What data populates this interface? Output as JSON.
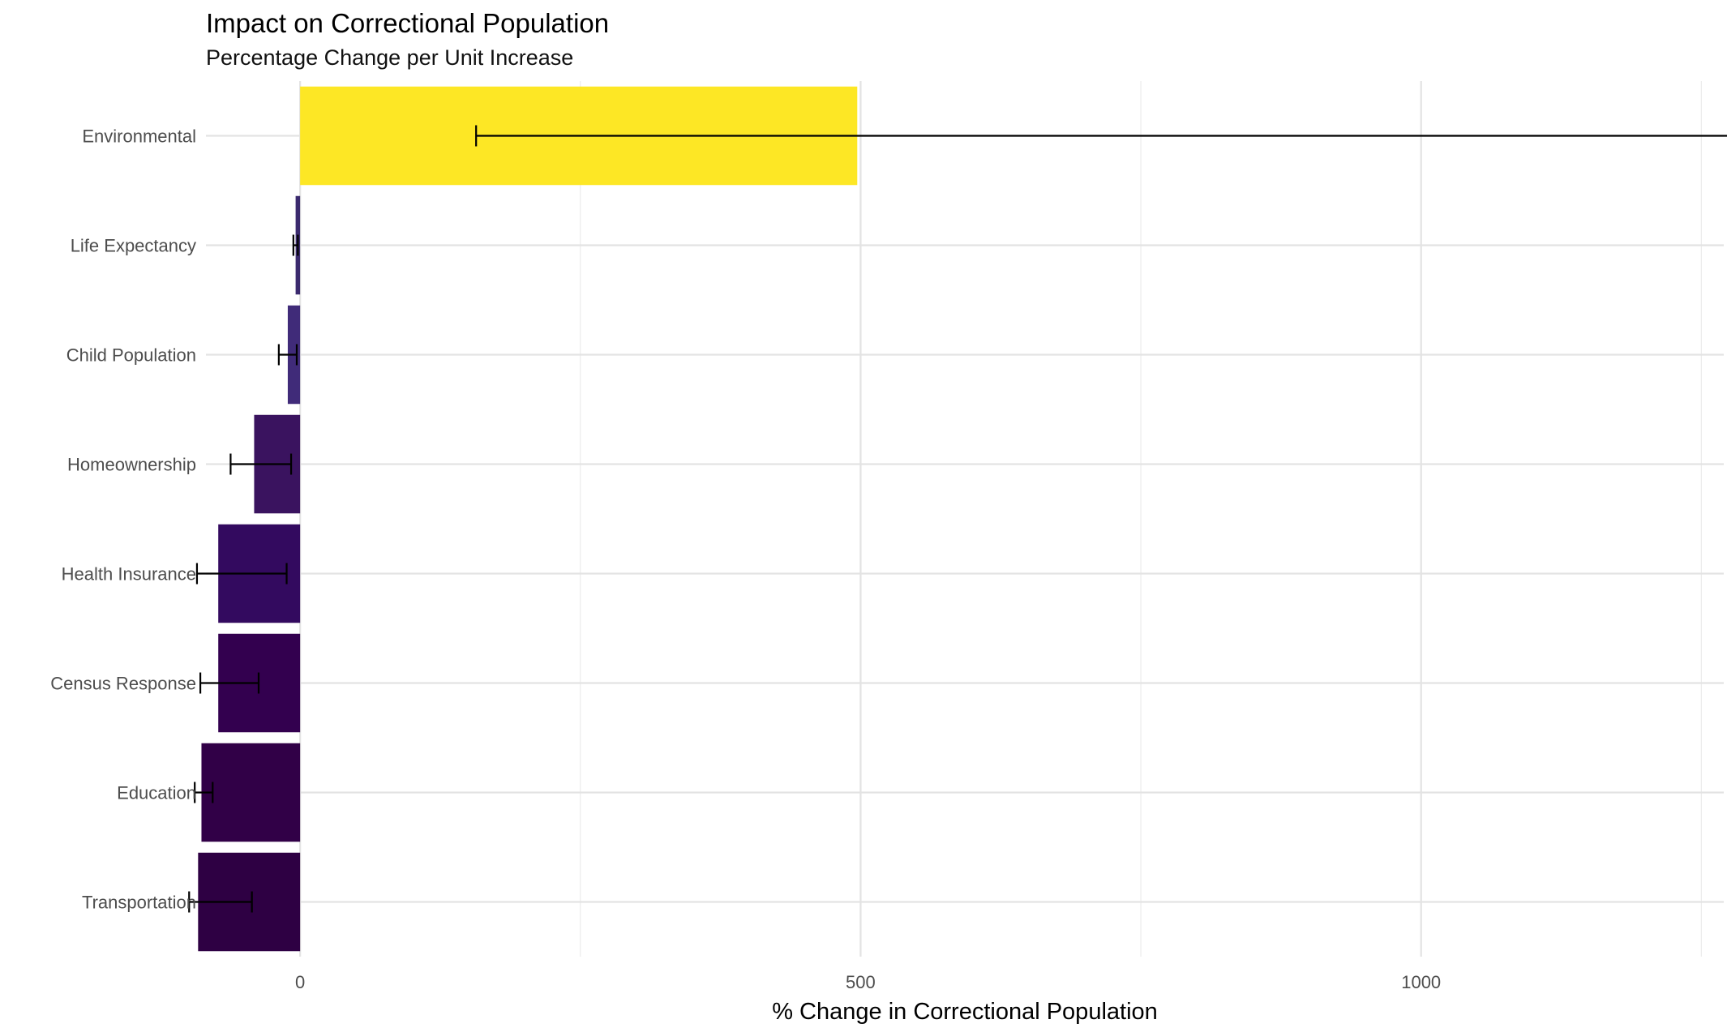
{
  "chart_data": {
    "type": "bar",
    "orientation": "horizontal",
    "title": "Impact on Correctional Population",
    "subtitle": "Percentage Change per Unit Increase",
    "xlabel": "% Change in Correctional Population",
    "ylabel": "",
    "xlim": [
      -84,
      1270
    ],
    "x_ticks": [
      0,
      500,
      1000
    ],
    "grid": true,
    "legend": "none",
    "categories": [
      "Environmental",
      "Life Expectancy",
      "Child Population",
      "Homeownership",
      "Health Insurance",
      "Census Response",
      "Education",
      "Transportation"
    ],
    "values": [
      497,
      -4,
      -11,
      -41,
      -73,
      -73,
      -88,
      -91
    ],
    "error_low": [
      157,
      -6,
      -19,
      -62,
      -92,
      -89,
      -94,
      -99
    ],
    "error_high": [
      1285,
      -2,
      -3,
      -8,
      -12,
      -37,
      -78,
      -43
    ],
    "colors": [
      "#FDE725",
      "#3B2A6E",
      "#402B79",
      "#3A135F",
      "#330A5F",
      "#33004F",
      "#310047",
      "#2E0043"
    ]
  }
}
